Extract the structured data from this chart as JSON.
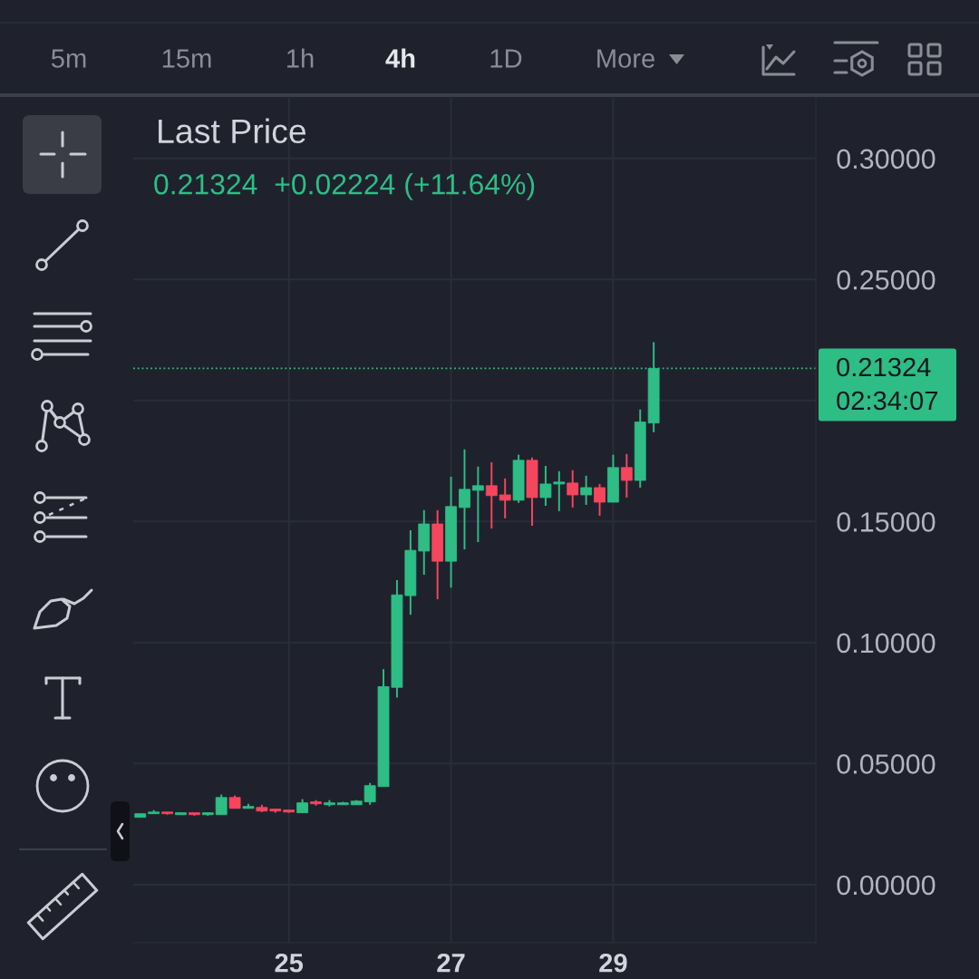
{
  "chart_data": {
    "type": "candlestick",
    "title": "Last Price",
    "subtitle": "0.21324  +0.02224 (+11.64%)",
    "x": [
      23.1667,
      23.3333,
      23.5,
      23.6667,
      23.8333,
      24,
      24.1667,
      24.3333,
      24.5,
      24.6667,
      24.8333,
      25,
      25.1667,
      25.3333,
      25.5,
      25.6667,
      25.8333,
      26,
      26.1667,
      26.3333,
      26.5,
      26.6667,
      26.8333,
      27,
      27.1667,
      27.3333,
      27.5,
      27.6667,
      27.8333,
      28,
      28.1667,
      28.3333,
      28.5,
      28.6667,
      28.8333,
      29,
      29.1667,
      29.3333,
      29.5
    ],
    "ohlc": [
      [
        0.0278,
        0.0293,
        0.0278,
        0.0293
      ],
      [
        0.0293,
        0.0308,
        0.0293,
        0.03
      ],
      [
        0.03,
        0.03,
        0.0289,
        0.0293
      ],
      [
        0.0289,
        0.0297,
        0.0289,
        0.0297
      ],
      [
        0.0297,
        0.0297,
        0.0285,
        0.0289
      ],
      [
        0.0289,
        0.0297,
        0.0285,
        0.0297
      ],
      [
        0.0289,
        0.0372,
        0.0289,
        0.036
      ],
      [
        0.036,
        0.0368,
        0.0315,
        0.0315
      ],
      [
        0.0315,
        0.0334,
        0.0315,
        0.0323
      ],
      [
        0.0319,
        0.033,
        0.03,
        0.0304
      ],
      [
        0.0312,
        0.0312,
        0.0297,
        0.0304
      ],
      [
        0.0308,
        0.0308,
        0.0297,
        0.03
      ],
      [
        0.0297,
        0.0353,
        0.0297,
        0.0338
      ],
      [
        0.0342,
        0.0349,
        0.0327,
        0.0334
      ],
      [
        0.033,
        0.0349,
        0.0323,
        0.0338
      ],
      [
        0.033,
        0.0342,
        0.033,
        0.0338
      ],
      [
        0.033,
        0.0349,
        0.033,
        0.0345
      ],
      [
        0.0342,
        0.042,
        0.033,
        0.0409
      ],
      [
        0.0405,
        0.089,
        0.0405,
        0.0818
      ],
      [
        0.0815,
        0.1258,
        0.0773,
        0.1197
      ],
      [
        0.1194,
        0.1464,
        0.1115,
        0.1381
      ],
      [
        0.1378,
        0.1547,
        0.128,
        0.149
      ],
      [
        0.149,
        0.1547,
        0.1179,
        0.1336
      ],
      [
        0.1336,
        0.1685,
        0.1227,
        0.1562
      ],
      [
        0.1558,
        0.1798,
        0.1385,
        0.1633
      ],
      [
        0.1629,
        0.1727,
        0.1415,
        0.1648
      ],
      [
        0.1648,
        0.1745,
        0.1471,
        0.1607
      ],
      [
        0.161,
        0.1678,
        0.1513,
        0.1588
      ],
      [
        0.1588,
        0.1776,
        0.1577,
        0.1753
      ],
      [
        0.1753,
        0.1764,
        0.1483,
        0.1599
      ],
      [
        0.1599,
        0.173,
        0.1565,
        0.1655
      ],
      [
        0.1655,
        0.1708,
        0.1543,
        0.1663
      ],
      [
        0.1659,
        0.1712,
        0.1558,
        0.161
      ],
      [
        0.161,
        0.1689,
        0.1569,
        0.164
      ],
      [
        0.164,
        0.1655,
        0.1524,
        0.158
      ],
      [
        0.158,
        0.1776,
        0.158,
        0.1723
      ],
      [
        0.1723,
        0.1779,
        0.1599,
        0.167
      ],
      [
        0.167,
        0.1963,
        0.164,
        0.1911
      ],
      [
        0.1907,
        0.2241,
        0.1869,
        0.21324
      ]
    ],
    "colors": [
      "#2ebd85",
      "#2ebd85",
      "#f6465d",
      "#2ebd85",
      "#f6465d",
      "#2ebd85",
      "#2ebd85",
      "#f6465d",
      "#2ebd85",
      "#f6465d",
      "#f6465d",
      "#f6465d",
      "#2ebd85",
      "#f6465d",
      "#2ebd85",
      "#2ebd85",
      "#2ebd85",
      "#2ebd85",
      "#2ebd85",
      "#2ebd85",
      "#2ebd85",
      "#2ebd85",
      "#f6465d",
      "#2ebd85",
      "#2ebd85",
      "#2ebd85",
      "#f6465d",
      "#f6465d",
      "#2ebd85",
      "#f6465d",
      "#2ebd85",
      "#2ebd85",
      "#f6465d",
      "#2ebd85",
      "#f6465d",
      "#2ebd85",
      "#f6465d",
      "#2ebd85",
      "#2ebd85"
    ],
    "xlim": [
      23.08,
      31.5
    ],
    "ylim": [
      -0.024,
      0.325
    ],
    "xticks": [
      25,
      27,
      29
    ],
    "yticks": [
      {
        "value": 0,
        "label": "0.00000"
      },
      {
        "value": 0.05,
        "label": "0.05000"
      },
      {
        "value": 0.1,
        "label": "0.10000"
      },
      {
        "value": 0.15,
        "label": "0.15000"
      },
      {
        "value": 0.2,
        "label": null
      },
      {
        "value": 0.25,
        "label": "0.25000"
      },
      {
        "value": 0.3,
        "label": "0.30000"
      }
    ],
    "grid": true,
    "ref_lines": [
      {
        "axis": "y",
        "value": 0.21324,
        "label": "0.21324",
        "color": "#2ebd85",
        "line_style": "dotted"
      }
    ],
    "annotations": [
      "5m",
      "15m",
      "1h",
      "4h",
      "1D",
      "More",
      "02:34:07"
    ]
  }
}
